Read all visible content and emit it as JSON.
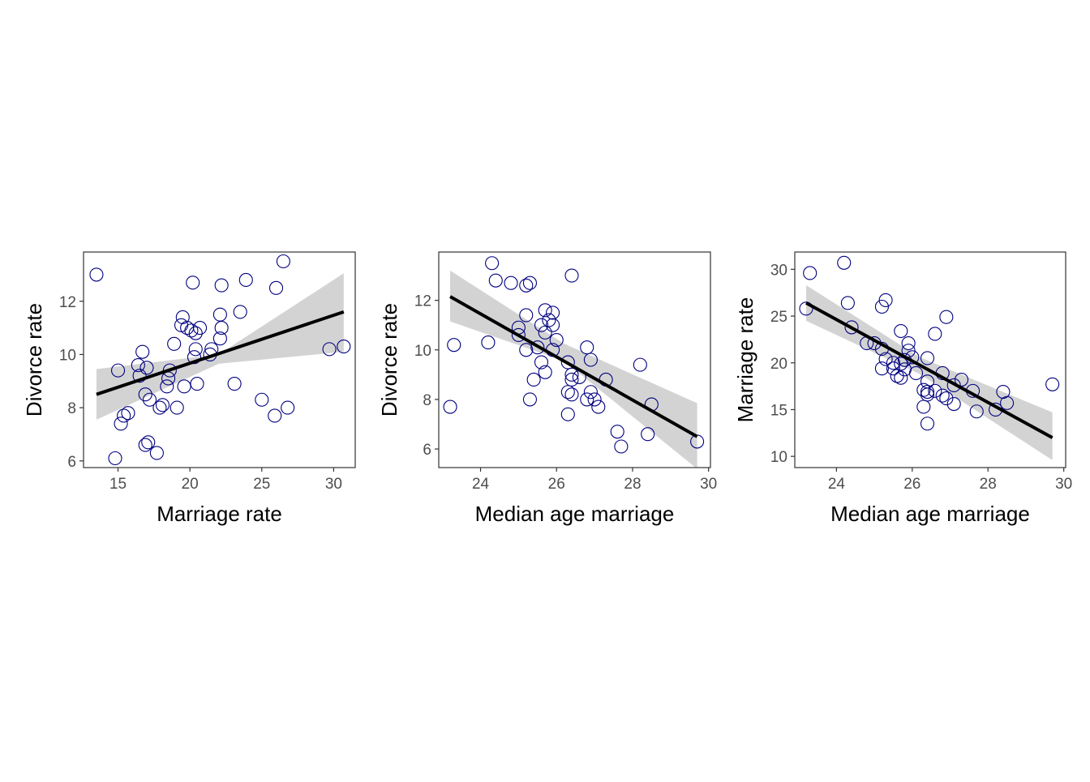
{
  "chart_data": [
    {
      "type": "scatter",
      "xlabel": "Marriage rate",
      "ylabel": "Divorce rate",
      "xlim": [
        12.6,
        31.5
      ],
      "ylim": [
        5.75,
        13.85
      ],
      "xticks": [
        15,
        20,
        25,
        30
      ],
      "yticks": [
        6,
        8,
        10,
        12
      ],
      "trend": {
        "x": [
          13.5,
          30.7
        ],
        "y": [
          8.5,
          11.6
        ]
      },
      "band": {
        "x": [
          13.5,
          22.0,
          30.7
        ],
        "lower": [
          7.55,
          9.65,
          10.1
        ],
        "upper": [
          9.45,
          10.0,
          13.05
        ]
      },
      "points": [
        [
          13.5,
          13.0
        ],
        [
          26.5,
          13.5
        ],
        [
          20.2,
          12.7
        ],
        [
          22.2,
          12.6
        ],
        [
          23.9,
          12.8
        ],
        [
          26.0,
          12.5
        ],
        [
          22.1,
          11.5
        ],
        [
          23.5,
          11.6
        ],
        [
          19.5,
          11.4
        ],
        [
          19.4,
          11.1
        ],
        [
          19.8,
          11.0
        ],
        [
          20.1,
          10.9
        ],
        [
          20.4,
          10.8
        ],
        [
          20.7,
          11.0
        ],
        [
          22.2,
          11.0
        ],
        [
          22.1,
          10.6
        ],
        [
          18.9,
          10.4
        ],
        [
          21.5,
          10.2
        ],
        [
          20.4,
          10.2
        ],
        [
          16.7,
          10.1
        ],
        [
          21.4,
          10.0
        ],
        [
          20.3,
          9.9
        ],
        [
          16.4,
          9.6
        ],
        [
          17.0,
          9.5
        ],
        [
          15.0,
          9.4
        ],
        [
          18.6,
          9.4
        ],
        [
          16.5,
          9.2
        ],
        [
          18.5,
          9.1
        ],
        [
          18.4,
          8.8
        ],
        [
          19.6,
          8.8
        ],
        [
          20.5,
          8.9
        ],
        [
          23.1,
          8.9
        ],
        [
          16.9,
          8.5
        ],
        [
          17.2,
          8.3
        ],
        [
          25.0,
          8.3
        ],
        [
          17.9,
          8.0
        ],
        [
          18.1,
          8.1
        ],
        [
          19.1,
          8.0
        ],
        [
          26.8,
          8.0
        ],
        [
          25.9,
          7.7
        ],
        [
          15.7,
          7.8
        ],
        [
          15.4,
          7.7
        ],
        [
          15.2,
          7.4
        ],
        [
          16.9,
          6.6
        ],
        [
          17.1,
          6.7
        ],
        [
          17.7,
          6.3
        ],
        [
          14.8,
          6.1
        ],
        [
          29.7,
          10.2
        ],
        [
          30.7,
          10.3
        ]
      ]
    },
    {
      "type": "scatter",
      "xlabel": "Median age marriage",
      "ylabel": "Divorce rate",
      "xlim": [
        22.9,
        30.05
      ],
      "ylim": [
        5.25,
        13.95
      ],
      "xticks": [
        24,
        26,
        28,
        30
      ],
      "yticks": [
        6,
        8,
        10,
        12
      ],
      "trend": {
        "x": [
          23.2,
          29.7
        ],
        "y": [
          12.15,
          6.5
        ]
      },
      "band": {
        "x": [
          23.2,
          26.2,
          29.7
        ],
        "lower": [
          11.15,
          9.55,
          5.2
        ],
        "upper": [
          13.2,
          10.25,
          7.85
        ]
      },
      "points": [
        [
          24.3,
          13.5
        ],
        [
          24.4,
          12.8
        ],
        [
          24.8,
          12.7
        ],
        [
          25.2,
          12.6
        ],
        [
          25.3,
          12.7
        ],
        [
          26.4,
          13.0
        ],
        [
          25.2,
          11.4
        ],
        [
          25.7,
          11.6
        ],
        [
          25.9,
          11.5
        ],
        [
          25.6,
          11.0
        ],
        [
          25.8,
          11.2
        ],
        [
          25.9,
          11.0
        ],
        [
          25.0,
          10.9
        ],
        [
          25.0,
          10.6
        ],
        [
          25.7,
          10.7
        ],
        [
          26.0,
          10.4
        ],
        [
          23.3,
          10.2
        ],
        [
          24.2,
          10.3
        ],
        [
          25.2,
          10.0
        ],
        [
          25.5,
          10.1
        ],
        [
          25.9,
          10.0
        ],
        [
          25.6,
          9.5
        ],
        [
          26.3,
          9.5
        ],
        [
          25.7,
          9.1
        ],
        [
          26.4,
          9.0
        ],
        [
          26.9,
          9.6
        ],
        [
          26.6,
          8.9
        ],
        [
          26.4,
          8.8
        ],
        [
          25.4,
          8.8
        ],
        [
          26.8,
          10.1
        ],
        [
          27.3,
          8.8
        ],
        [
          26.9,
          8.3
        ],
        [
          26.3,
          8.3
        ],
        [
          26.4,
          8.2
        ],
        [
          25.3,
          8.0
        ],
        [
          26.8,
          8.0
        ],
        [
          27.0,
          8.0
        ],
        [
          27.1,
          7.7
        ],
        [
          26.3,
          7.4
        ],
        [
          23.2,
          7.7
        ],
        [
          28.5,
          7.8
        ],
        [
          28.2,
          9.4
        ],
        [
          27.6,
          6.7
        ],
        [
          27.7,
          6.1
        ],
        [
          28.4,
          6.6
        ],
        [
          29.7,
          6.3
        ]
      ]
    },
    {
      "type": "scatter",
      "xlabel": "Median age marriage",
      "ylabel": "Marriage rate",
      "xlim": [
        22.9,
        30.05
      ],
      "ylim": [
        8.8,
        31.85
      ],
      "xticks": [
        24,
        26,
        28,
        30
      ],
      "yticks": [
        10,
        15,
        20,
        25,
        30
      ],
      "trend": {
        "x": [
          23.2,
          29.7
        ],
        "y": [
          26.4,
          12.0
        ]
      },
      "band": {
        "x": [
          23.2,
          26.2,
          29.7
        ],
        "lower": [
          24.5,
          18.8,
          9.6
        ],
        "upper": [
          28.3,
          20.6,
          14.7
        ]
      },
      "points": [
        [
          23.3,
          29.6
        ],
        [
          24.2,
          30.7
        ],
        [
          23.2,
          25.8
        ],
        [
          24.3,
          26.4
        ],
        [
          25.2,
          26.0
        ],
        [
          25.3,
          26.7
        ],
        [
          26.9,
          24.9
        ],
        [
          24.4,
          23.8
        ],
        [
          25.7,
          23.4
        ],
        [
          26.6,
          23.1
        ],
        [
          24.8,
          22.1
        ],
        [
          25.0,
          22.1
        ],
        [
          25.2,
          21.5
        ],
        [
          25.9,
          22.1
        ],
        [
          25.9,
          21.3
        ],
        [
          26.0,
          20.6
        ],
        [
          25.3,
          20.4
        ],
        [
          25.5,
          20.0
        ],
        [
          25.7,
          19.9
        ],
        [
          25.8,
          20.3
        ],
        [
          26.4,
          20.5
        ],
        [
          25.2,
          19.4
        ],
        [
          25.5,
          19.4
        ],
        [
          25.8,
          19.3
        ],
        [
          26.1,
          18.9
        ],
        [
          25.6,
          18.6
        ],
        [
          25.7,
          18.4
        ],
        [
          26.4,
          18.0
        ],
        [
          26.8,
          18.9
        ],
        [
          27.3,
          18.2
        ],
        [
          27.1,
          17.6
        ],
        [
          27.6,
          17.0
        ],
        [
          28.4,
          16.9
        ],
        [
          26.3,
          17.1
        ],
        [
          26.4,
          16.6
        ],
        [
          26.4,
          16.9
        ],
        [
          26.6,
          17.0
        ],
        [
          26.8,
          16.5
        ],
        [
          26.9,
          16.2
        ],
        [
          27.1,
          15.6
        ],
        [
          26.3,
          15.3
        ],
        [
          28.2,
          15.0
        ],
        [
          28.5,
          15.7
        ],
        [
          27.7,
          14.8
        ],
        [
          26.4,
          13.5
        ],
        [
          29.7,
          17.7
        ]
      ]
    }
  ],
  "colors": {
    "point_stroke": "#000080",
    "trend_line": "#000000",
    "confidence_band": "#d3d3d3",
    "frame": "#333333",
    "tick_label": "#4d4d4d",
    "axis_title": "#000000"
  }
}
